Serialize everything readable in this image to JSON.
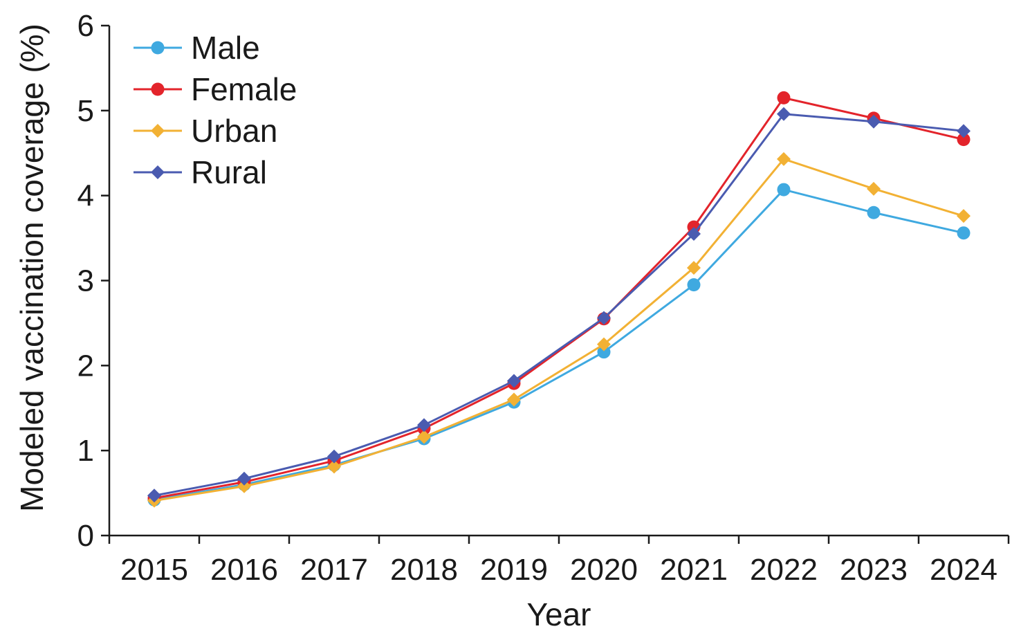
{
  "chart_data": {
    "type": "line",
    "title": "",
    "xlabel": "Year",
    "ylabel": "Modeled vaccination coverage (%)",
    "x": [
      "2015",
      "2016",
      "2017",
      "2018",
      "2019",
      "2020",
      "2021",
      "2022",
      "2023",
      "2024"
    ],
    "ylim": [
      0,
      6
    ],
    "yticks": [
      "0",
      "1",
      "2",
      "3",
      "4",
      "5",
      "6"
    ],
    "grid": false,
    "legend": "top-left",
    "series": [
      {
        "name": "Male",
        "color": "#3fa9e0",
        "marker": "circle",
        "values": [
          0.42,
          0.6,
          0.83,
          1.14,
          1.57,
          2.16,
          2.95,
          4.07,
          3.8,
          3.56
        ]
      },
      {
        "name": "Female",
        "color": "#e3242b",
        "marker": "circle",
        "values": [
          0.44,
          0.63,
          0.88,
          1.26,
          1.79,
          2.55,
          3.63,
          5.15,
          4.91,
          4.66
        ]
      },
      {
        "name": "Urban",
        "color": "#f2b134",
        "marker": "diamond",
        "values": [
          0.41,
          0.58,
          0.81,
          1.16,
          1.6,
          2.25,
          3.15,
          4.43,
          4.08,
          3.76
        ]
      },
      {
        "name": "Rural",
        "color": "#4a5bb0",
        "marker": "diamond",
        "values": [
          0.47,
          0.67,
          0.93,
          1.3,
          1.82,
          2.56,
          3.55,
          4.96,
          4.87,
          4.76
        ]
      }
    ]
  }
}
